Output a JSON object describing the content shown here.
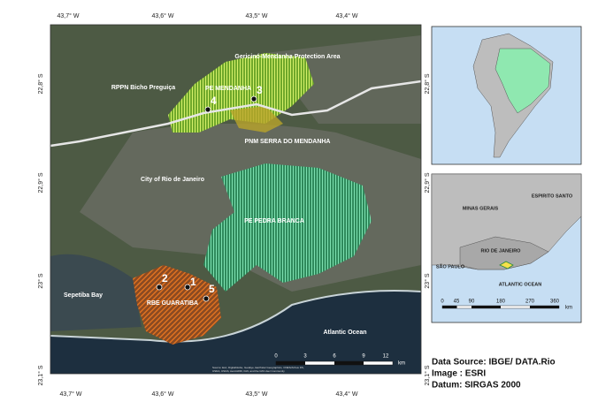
{
  "map": {
    "longitude_labels": [
      "43,7° W",
      "43,6° W",
      "43,5° W",
      "43,4° W"
    ],
    "latitude_labels": [
      "22,8° S",
      "22,9° S",
      "23° S",
      "23,1° S"
    ],
    "area_labels": [
      "Gericinó-Mendanha Protection Area",
      "PE MENDANHA",
      "RPPN Bicho Preguiça",
      "PNM SERRA DO MENDANHA",
      "City of Rio de Janeiro",
      "PE PEDRA BRANCA",
      "RBE GUARATIBA",
      "Sepetiba Bay",
      "Atlantic Ocean"
    ],
    "points": [
      "1",
      "2",
      "3",
      "4",
      "5"
    ],
    "scale_bar": {
      "ticks": [
        "0",
        "3",
        "6",
        "9",
        "12"
      ],
      "unit": "km"
    },
    "source_note": "Source: Esri, DigitalGlobe, GeoEye, Earthstar Geographics, CNES/Airbus DS, USDA, USGS, AeroGRID, IGN, and the GIS User Community"
  },
  "inset_state": {
    "labels": [
      "MINAS GERAIS",
      "ESPIRITO SANTO",
      "RIO DE JANEIRO",
      "SÃO PAULO",
      "ATLANTIC OCEAN"
    ],
    "scale_bar": {
      "ticks": [
        "0",
        "45",
        "90",
        "180",
        "270",
        "360"
      ],
      "unit": "km"
    }
  },
  "credits": [
    "Data Source: IBGE/ DATA.Rio",
    "Image : ESRI",
    "Datum: SIRGAS 2000"
  ]
}
